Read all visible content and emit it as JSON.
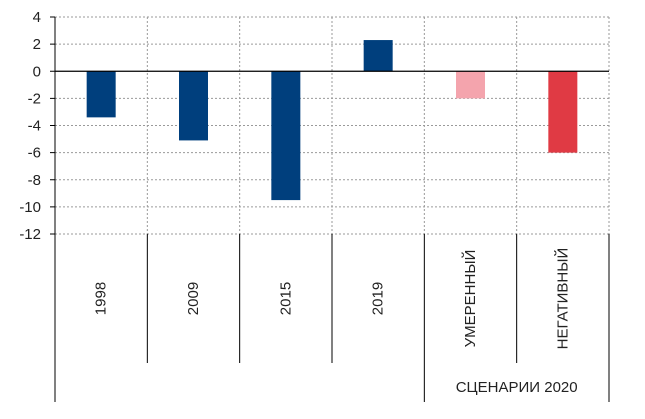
{
  "chart_data": {
    "type": "bar",
    "title": "",
    "xlabel": "",
    "ylabel": "",
    "ylim": [
      -12,
      4
    ],
    "ytick_step": 2,
    "grid": true,
    "categories": [
      "1998",
      "2009",
      "2015",
      "2019",
      "УМЕРЕННЫЙ",
      "НЕГАТИВНЫЙ"
    ],
    "values": [
      -3.4,
      -5.1,
      -9.5,
      2.3,
      -2.0,
      -6.0
    ],
    "colors": [
      "#003f7d",
      "#003f7d",
      "#003f7d",
      "#003f7d",
      "#f4a4ad",
      "#e03a44"
    ],
    "group_label": "СЦЕНАРИИ 2020",
    "group_categories": [
      "УМЕРЕННЫЙ",
      "НЕГАТИВНЫЙ"
    ]
  }
}
